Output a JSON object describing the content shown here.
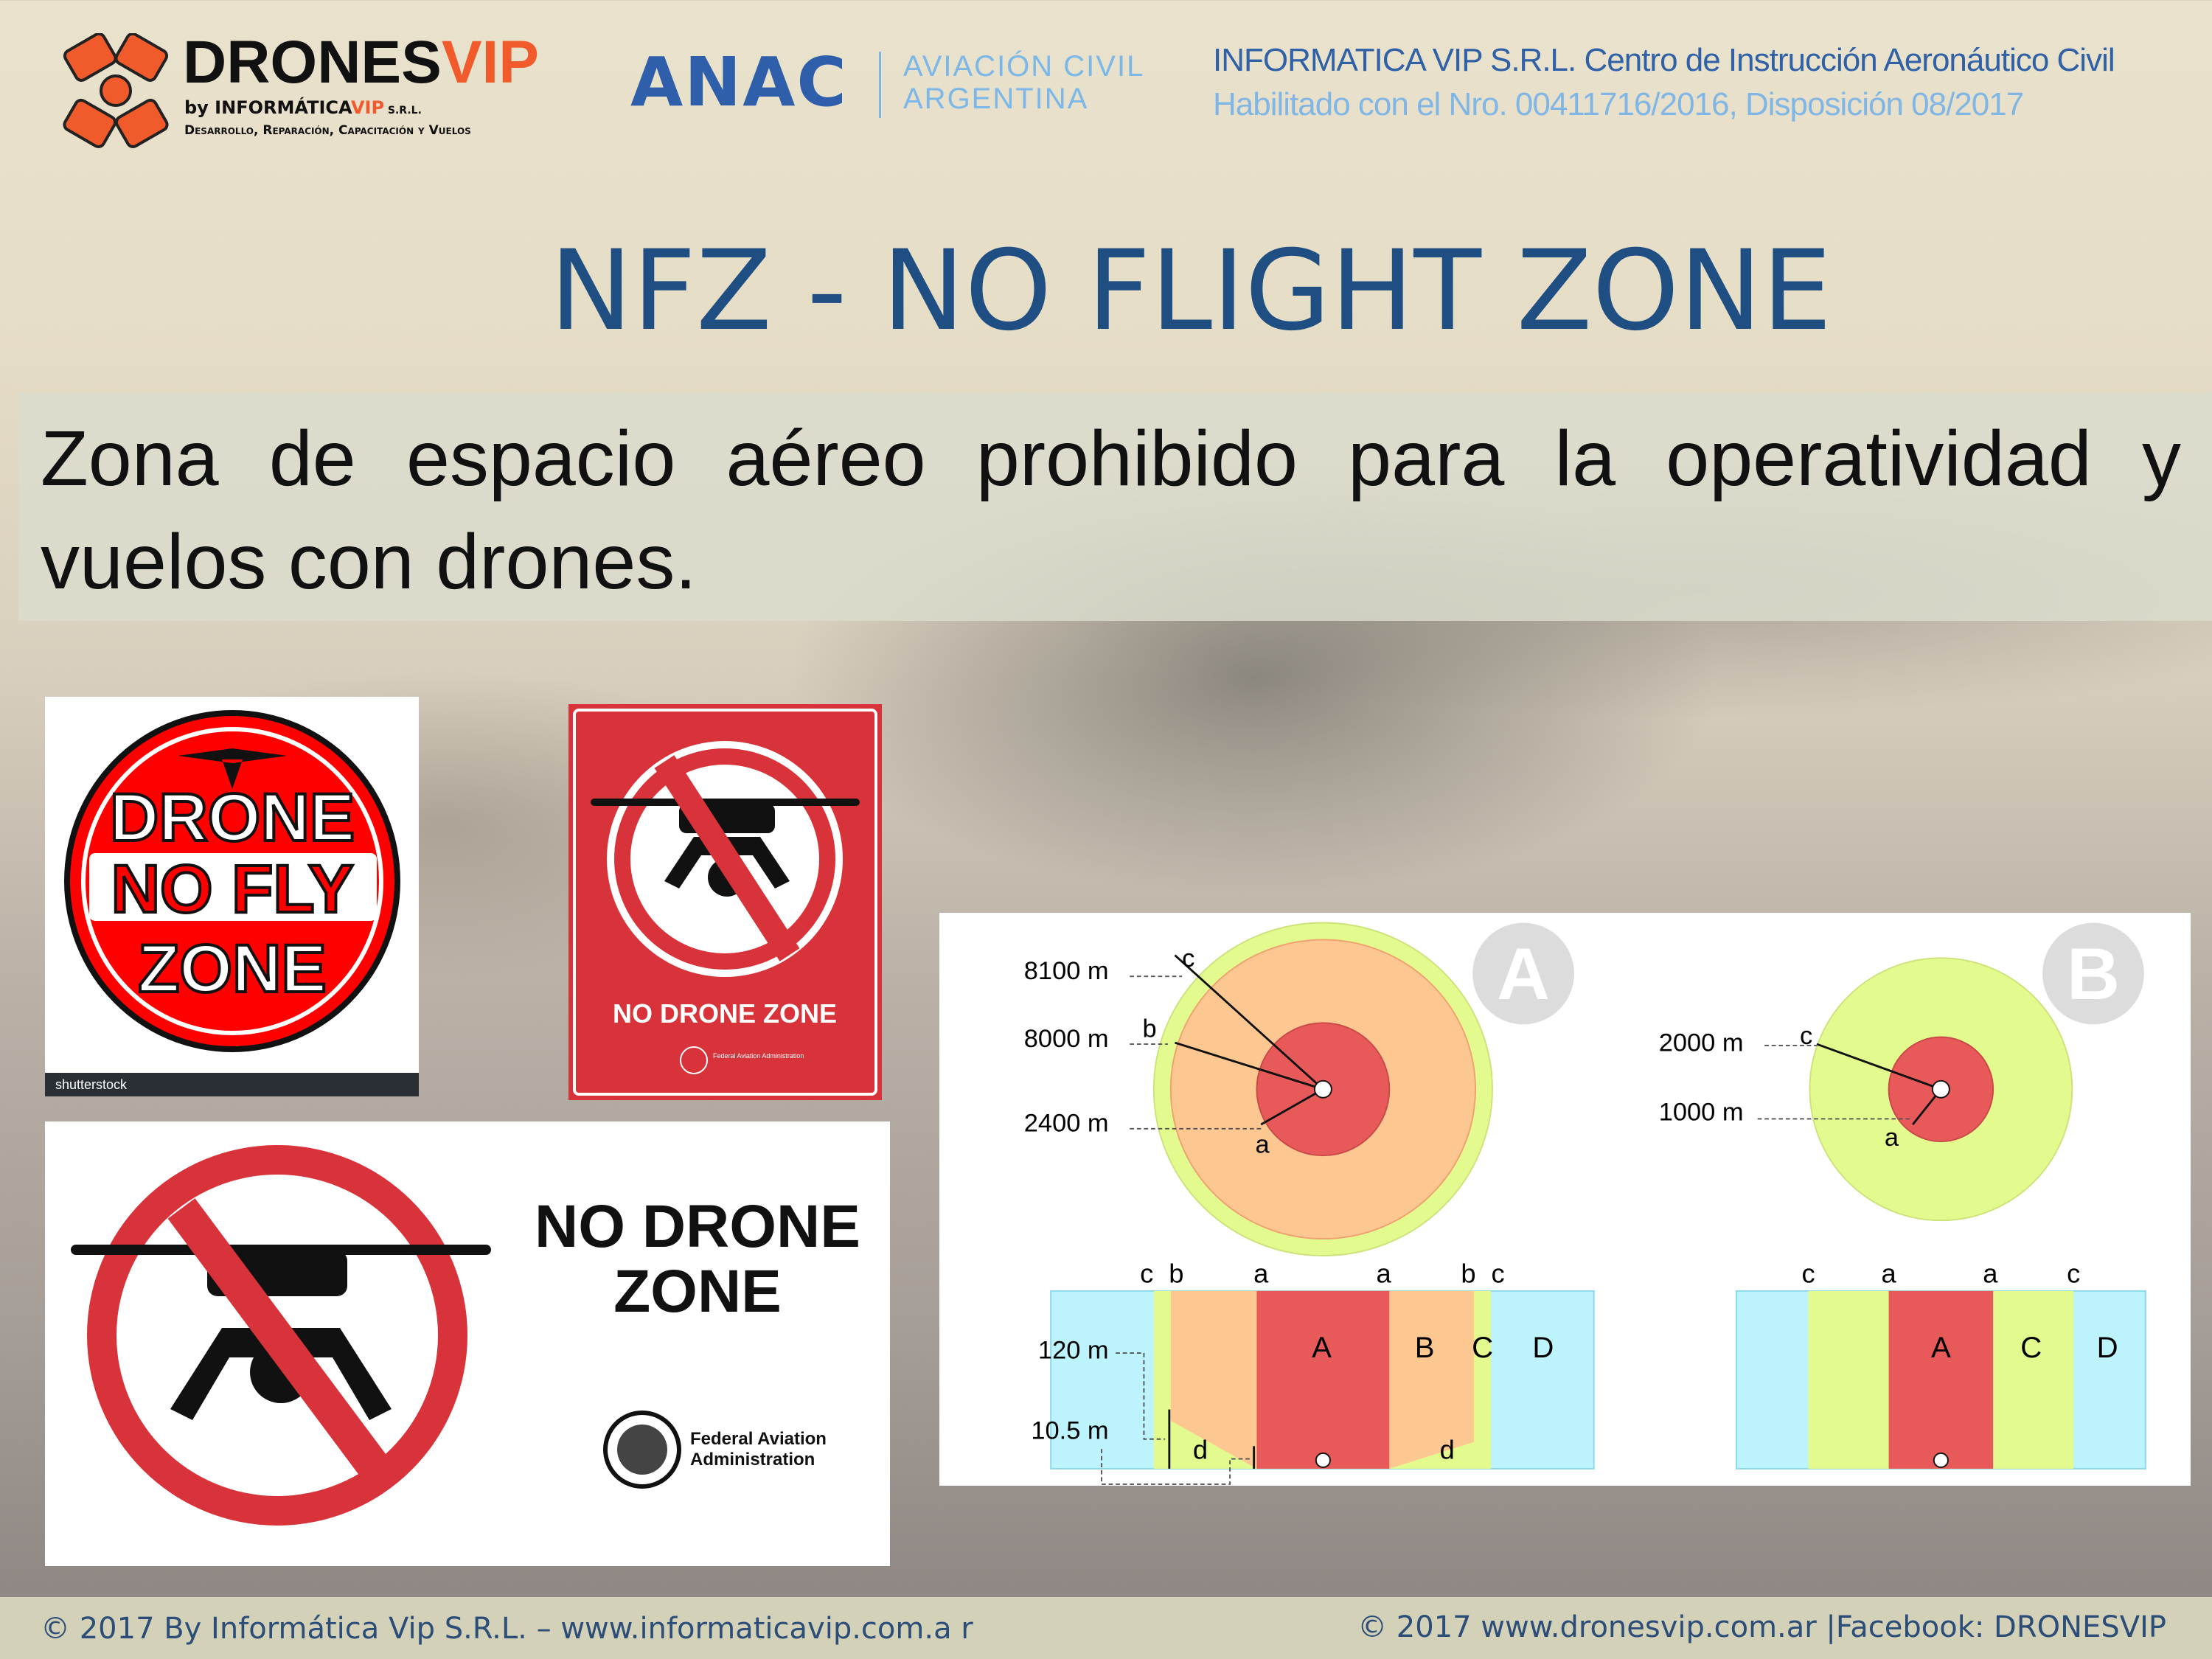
{
  "header": {
    "logo": {
      "name": "DRONES",
      "accent": "VIP",
      "by": "by INFORMÁTICA",
      "by_accent": "VIP",
      "by_suffix": " S.R.L.",
      "tagline": "Desarrollo, Reparación, Capacitación y Vuelos"
    },
    "anac": {
      "name": "ANAC",
      "line1": "AVIACIÓN CIVIL",
      "line2": "ARGENTINA"
    },
    "info_line1": "INFORMATICA VIP S.R.L. Centro de Instrucción Aeronáutico Civil",
    "info_line2": "Habilitado con el Nro. 00411716/2016, Disposición 08/2017"
  },
  "title": "NFZ - NO FLIGHT ZONE",
  "description": "Zona de espacio aéreo prohibido para la operatividad y vuelos con drones.",
  "signs": {
    "sign1": {
      "line1": "DRONE",
      "line2": "NO FLY",
      "line3": "ZONE",
      "watermark": "shutterstock"
    },
    "sign2": {
      "text": "NO DRONE ZONE",
      "agency": "Federal Aviation Administration"
    },
    "sign3": {
      "line1": "NO DRONE",
      "line2": "ZONE",
      "agency1": "Federal Aviation",
      "agency2": "Administration"
    }
  },
  "diagram": {
    "badge_a": "A",
    "badge_b": "B",
    "a_labels": {
      "c": "8100 m",
      "b": "8000 m",
      "a": "2400 m"
    },
    "b_labels": {
      "c": "2000 m",
      "a": "1000 m"
    },
    "height_labels": {
      "top": "120 m",
      "bottom": "10.5 m"
    },
    "zones": [
      "A",
      "B",
      "C",
      "D"
    ],
    "letters": {
      "a": "a",
      "b": "b",
      "c": "c",
      "d": "d"
    },
    "colors": {
      "red": "#e8595a",
      "orange": "#fdc792",
      "green": "#e3fb8e",
      "cyan": "#bdf3fc",
      "badge": "#dcdcdc"
    }
  },
  "footer": {
    "left": "© 2017 By Informática Vip S.R.L. – www.informaticavip.com.a r",
    "right": "© 2017  www.dronesvip.com.ar |Facebook: DRONESVIP"
  }
}
